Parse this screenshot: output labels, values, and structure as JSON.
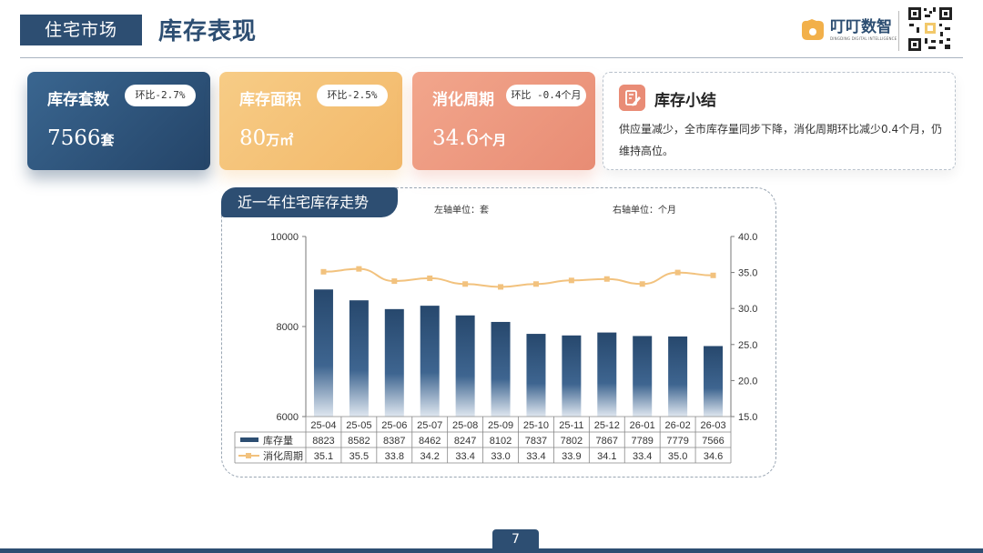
{
  "header": {
    "section": "住宅市场",
    "title": "库存表现",
    "logo_name": "叮叮数智",
    "logo_tagline": "DINGDING DIGITAL INTELLIGENCE"
  },
  "kpis": [
    {
      "label": "库存套数",
      "badge": "环比-2.7%",
      "value": "7566",
      "unit": "套"
    },
    {
      "label": "库存面积",
      "badge": "环比-2.5%",
      "value": "80",
      "unit": "万㎡"
    },
    {
      "label": "消化周期",
      "badge": "环比 -0.4个月",
      "value": "34.6",
      "unit": "个月"
    }
  ],
  "summary": {
    "title": "库存小结",
    "text": "供应量减少，全市库存量同步下降，消化周期环比减少0.4个月，仍维持高位。"
  },
  "chart_panel": {
    "tab_title": "近一年住宅库存走势",
    "left_unit": "左轴单位：套",
    "right_unit": "右轴单位：个月"
  },
  "chart_data": {
    "type": "bar",
    "categories": [
      "25-04",
      "25-05",
      "25-06",
      "25-07",
      "25-08",
      "25-09",
      "25-10",
      "25-11",
      "25-12",
      "26-01",
      "26-02",
      "26-03"
    ],
    "series": [
      {
        "name": "库存量",
        "type": "bar",
        "axis": "left",
        "values": [
          8823,
          8582,
          8387,
          8462,
          8247,
          8102,
          7837,
          7802,
          7867,
          7789,
          7779,
          7566
        ],
        "color": "#2d4e72"
      },
      {
        "name": "消化周期",
        "type": "line",
        "axis": "right",
        "values": [
          35.1,
          35.5,
          33.8,
          34.2,
          33.4,
          33.0,
          33.4,
          33.9,
          34.1,
          33.4,
          35.0,
          34.6
        ],
        "color": "#f2c27e"
      }
    ],
    "y_left": {
      "range": [
        6000,
        10000
      ],
      "ticks": [
        "6000",
        "8000",
        "10000"
      ]
    },
    "y_right": {
      "range": [
        15.0,
        40.0
      ],
      "ticks": [
        "15.0",
        "20.0",
        "25.0",
        "30.0",
        "35.0",
        "40.0"
      ]
    },
    "data_table": true
  },
  "footer": {
    "page_number": "7"
  },
  "colors": {
    "navy": "#2d4e72",
    "orange": "#f2b869",
    "coral": "#e88c74"
  }
}
